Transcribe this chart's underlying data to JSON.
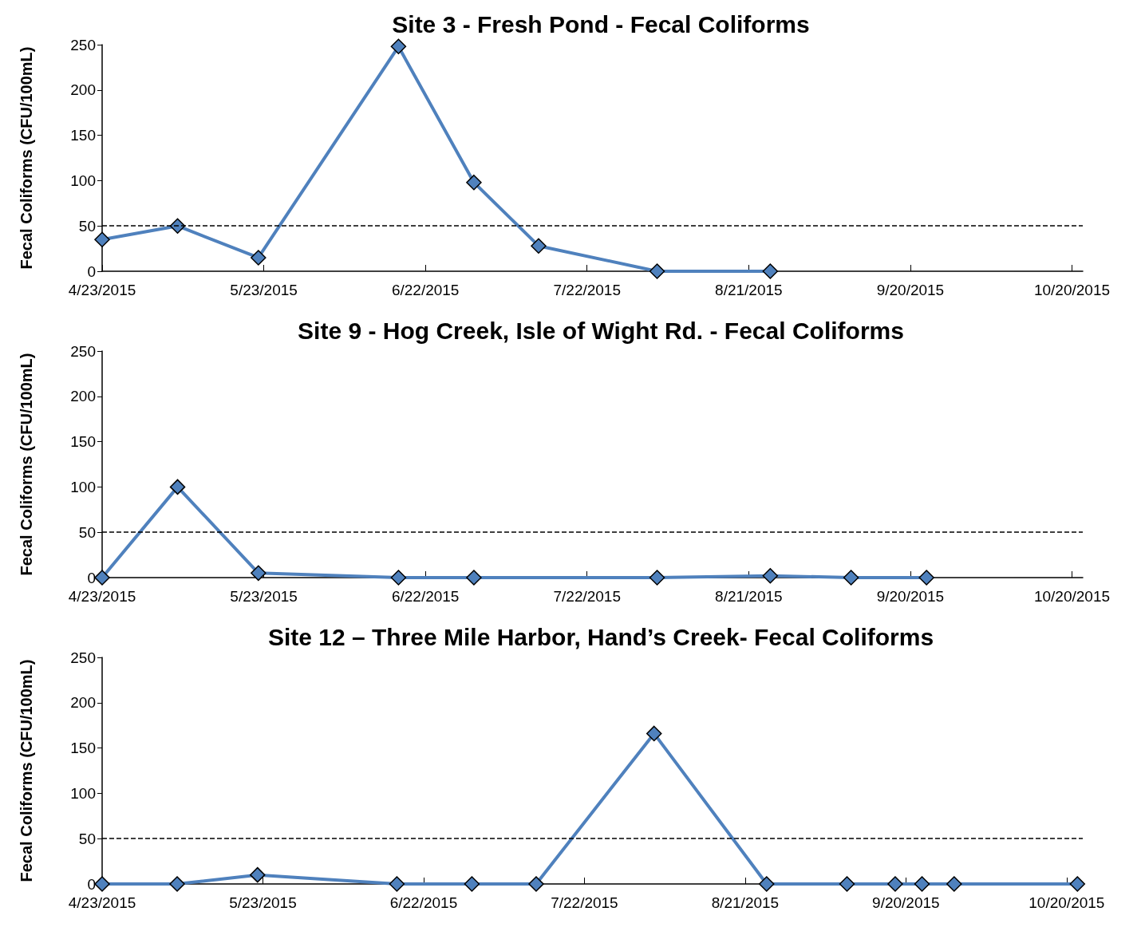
{
  "chart_data": [
    {
      "type": "line",
      "title": "Site 3 - Fresh Pond - Fecal Coliforms",
      "ylabel": "Fecal Coliforms (CFU/100mL)",
      "x": [
        "2015-04-23",
        "2015-05-07",
        "2015-05-22",
        "2015-06-17",
        "2015-07-01",
        "2015-07-13",
        "2015-08-04",
        "2015-08-25"
      ],
      "series": [
        {
          "color": "#4f81bd",
          "values": [
            35,
            50,
            15,
            248,
            98,
            28,
            0,
            0
          ]
        }
      ],
      "xlim": [
        "2015-04-23",
        "2015-10-22"
      ],
      "xticks": [
        {
          "value": "2015-04-23",
          "label": "4/23/2015"
        },
        {
          "value": "2015-05-23",
          "label": "5/23/2015"
        },
        {
          "value": "2015-06-22",
          "label": "6/22/2015"
        },
        {
          "value": "2015-07-22",
          "label": "7/22/2015"
        },
        {
          "value": "2015-08-21",
          "label": "8/21/2015"
        },
        {
          "value": "2015-09-20",
          "label": "9/20/2015"
        },
        {
          "value": "2015-10-20",
          "label": "10/20/2015"
        }
      ],
      "ylim": [
        0,
        250
      ],
      "yticks": [
        0,
        50,
        100,
        150,
        200,
        250
      ],
      "ref_lines": [
        {
          "axis": "y",
          "value": 50,
          "color": "#000000",
          "line_style": "dashed"
        }
      ],
      "marker": "diamond",
      "grid": false
    },
    {
      "type": "line",
      "title": "Site 9 - Hog Creek, Isle of Wight Rd. - Fecal Coliforms",
      "ylabel": "Fecal Coliforms (CFU/100mL)",
      "x": [
        "2015-04-23",
        "2015-05-07",
        "2015-05-22",
        "2015-06-17",
        "2015-07-01",
        "2015-08-04",
        "2015-08-25",
        "2015-09-09",
        "2015-09-23"
      ],
      "series": [
        {
          "color": "#4f81bd",
          "values": [
            0,
            100,
            5,
            0,
            0,
            0,
            2,
            0,
            0
          ]
        }
      ],
      "xlim": [
        "2015-04-23",
        "2015-10-22"
      ],
      "xticks": [
        {
          "value": "2015-04-23",
          "label": "4/23/2015"
        },
        {
          "value": "2015-05-23",
          "label": "5/23/2015"
        },
        {
          "value": "2015-06-22",
          "label": "6/22/2015"
        },
        {
          "value": "2015-07-22",
          "label": "7/22/2015"
        },
        {
          "value": "2015-08-21",
          "label": "8/21/2015"
        },
        {
          "value": "2015-09-20",
          "label": "9/20/2015"
        },
        {
          "value": "2015-10-20",
          "label": "10/20/2015"
        }
      ],
      "ylim": [
        0,
        250
      ],
      "yticks": [
        0,
        50,
        100,
        150,
        200,
        250
      ],
      "ref_lines": [
        {
          "axis": "y",
          "value": 50,
          "color": "#000000",
          "line_style": "dashed"
        }
      ],
      "marker": "diamond",
      "grid": false
    },
    {
      "type": "line",
      "title": "Site 12 – Three Mile Harbor, Hand’s Creek- Fecal Coliforms",
      "ylabel": "Fecal Coliforms (CFU/100mL)",
      "x": [
        "2015-04-23",
        "2015-05-07",
        "2015-05-22",
        "2015-06-17",
        "2015-07-01",
        "2015-07-13",
        "2015-08-04",
        "2015-08-25",
        "2015-09-09",
        "2015-09-18",
        "2015-09-23",
        "2015-09-29",
        "2015-10-22"
      ],
      "series": [
        {
          "color": "#4f81bd",
          "values": [
            0,
            0,
            10,
            0,
            0,
            0,
            166,
            0,
            0,
            0,
            0,
            0,
            0
          ]
        }
      ],
      "xlim": [
        "2015-04-23",
        "2015-10-23"
      ],
      "xticks": [
        {
          "value": "2015-04-23",
          "label": "4/23/2015"
        },
        {
          "value": "2015-05-23",
          "label": "5/23/2015"
        },
        {
          "value": "2015-06-22",
          "label": "6/22/2015"
        },
        {
          "value": "2015-07-22",
          "label": "7/22/2015"
        },
        {
          "value": "2015-08-21",
          "label": "8/21/2015"
        },
        {
          "value": "2015-09-20",
          "label": "9/20/2015"
        },
        {
          "value": "2015-10-20",
          "label": "10/20/2015"
        }
      ],
      "ylim": [
        0,
        250
      ],
      "yticks": [
        0,
        50,
        100,
        150,
        200,
        250
      ],
      "ref_lines": [
        {
          "axis": "y",
          "value": 50,
          "color": "#000000",
          "line_style": "dashed"
        }
      ],
      "marker": "diamond",
      "grid": false
    }
  ]
}
